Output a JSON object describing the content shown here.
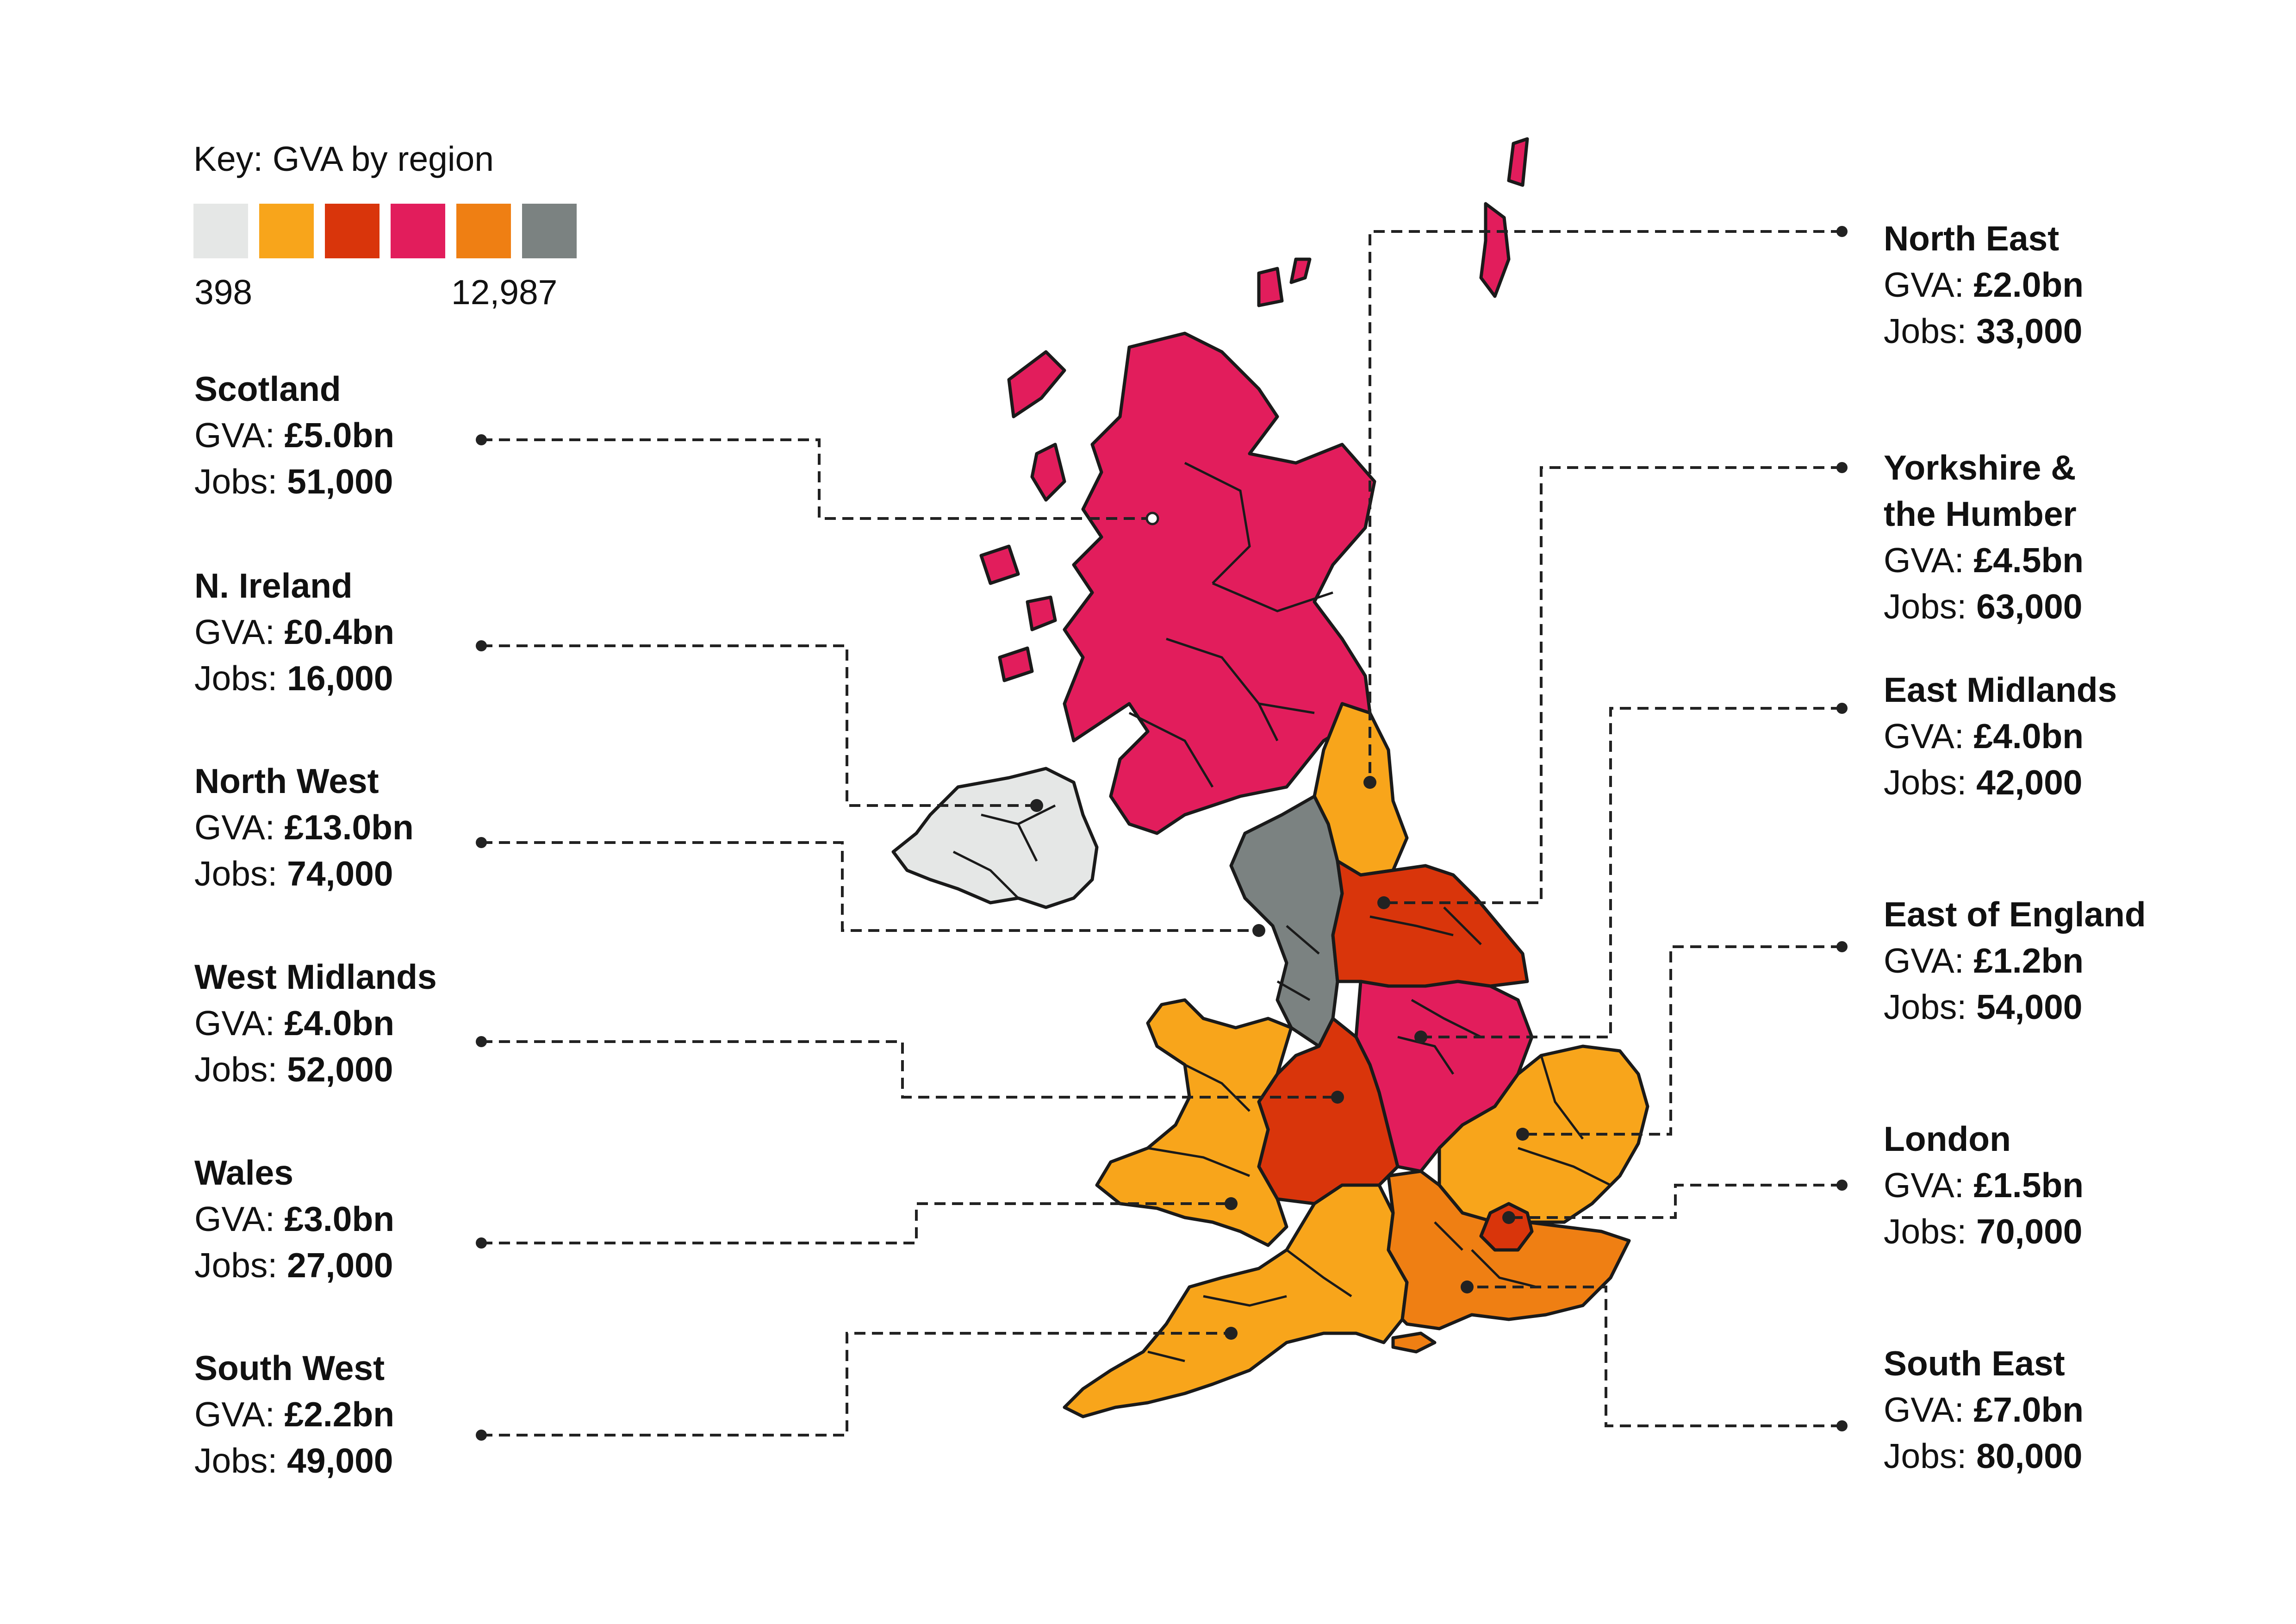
{
  "key": {
    "title": "Key: GVA by region",
    "min_label": "398",
    "max_label": "12,987",
    "colors": [
      "#e5e7e6",
      "#f8a51b",
      "#d9350b",
      "#e21d5c",
      "#ef7f13",
      "#7b8281"
    ]
  },
  "labels": {
    "gva_prefix": "GVA: ",
    "jobs_prefix": "Jobs: "
  },
  "regions": [
    {
      "id": "scotland",
      "name": "Scotland",
      "gva": "£5.0bn",
      "jobs": "51,000",
      "color": "#e21d5c"
    },
    {
      "id": "n_ireland",
      "name": "N. Ireland",
      "gva": "£0.4bn",
      "jobs": "16,000",
      "color": "#e5e7e6"
    },
    {
      "id": "north_west",
      "name": "North West",
      "gva": "£13.0bn",
      "jobs": "74,000",
      "color": "#7b8281"
    },
    {
      "id": "west_midlands",
      "name": "West Midlands",
      "gva": "£4.0bn",
      "jobs": "52,000",
      "color": "#d9350b"
    },
    {
      "id": "wales",
      "name": "Wales",
      "gva": "£3.0bn",
      "jobs": "27,000",
      "color": "#f8a51b"
    },
    {
      "id": "south_west",
      "name": "South West",
      "gva": "£2.2bn",
      "jobs": "49,000",
      "color": "#f8a51b"
    },
    {
      "id": "north_east",
      "name": "North East",
      "gva": "£2.0bn",
      "jobs": "33,000",
      "color": "#f8a51b"
    },
    {
      "id": "yorkshire",
      "name_lines": [
        "Yorkshire &",
        "the Humber"
      ],
      "gva": "£4.5bn",
      "jobs": "63,000",
      "color": "#d9350b"
    },
    {
      "id": "east_midlands",
      "name": "East Midlands",
      "gva": "£4.0bn",
      "jobs": "42,000",
      "color": "#e21d5c"
    },
    {
      "id": "east_of_england",
      "name": "East of England",
      "gva": "£1.2bn",
      "jobs": "54,000",
      "color": "#f8a51b"
    },
    {
      "id": "london",
      "name": "London",
      "gva": "£1.5bn",
      "jobs": "70,000",
      "color": "#d9350b"
    },
    {
      "id": "south_east",
      "name": "South East",
      "gva": "£7.0bn",
      "jobs": "80,000",
      "color": "#ef7f13"
    }
  ]
}
